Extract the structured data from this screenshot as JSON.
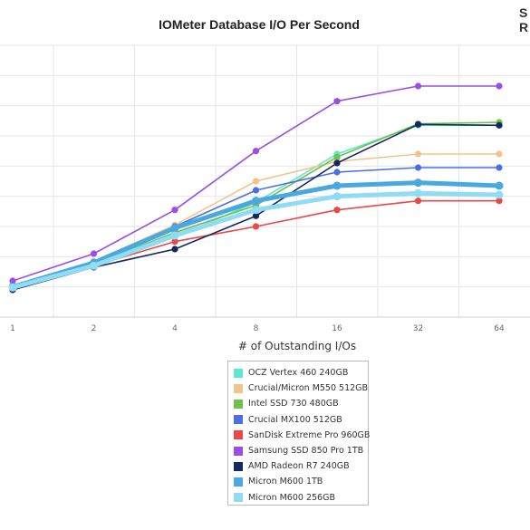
{
  "chart_data": {
    "type": "line",
    "title": "IOMeter Database I/O Per Second",
    "xlabel": "# of Outstanding I/Os",
    "ylabel": "",
    "x": [
      "1",
      "2",
      "4",
      "8",
      "16",
      "32",
      "64"
    ],
    "ylim": [
      0,
      9
    ],
    "grid": true,
    "legend_position": "bottom",
    "series": [
      {
        "name": "OCZ Vertex 460 240GB",
        "color": "#5fe6d3",
        "values": [
          1.0,
          1.75,
          2.65,
          3.8,
          5.4,
          6.35,
          6.35
        ]
      },
      {
        "name": "Crucial/Micron M550 512GB",
        "color": "#f0c58a",
        "values": [
          1.0,
          1.85,
          3.05,
          4.5,
          5.15,
          5.4,
          5.4
        ]
      },
      {
        "name": "Intel SSD 730 480GB",
        "color": "#6cc24a",
        "values": [
          0.95,
          1.75,
          2.8,
          3.7,
          5.3,
          6.4,
          6.45
        ]
      },
      {
        "name": "Crucial MX100 512GB",
        "color": "#4b6fe0",
        "values": [
          1.05,
          1.8,
          3.0,
          4.2,
          4.8,
          4.95,
          4.95
        ]
      },
      {
        "name": "SanDisk Extreme Pro 960GB",
        "color": "#e84848",
        "values": [
          0.95,
          1.7,
          2.5,
          3.0,
          3.55,
          3.85,
          3.85
        ]
      },
      {
        "name": "Samsung SSD 850 Pro 1TB",
        "color": "#9b4de8",
        "values": [
          1.2,
          2.1,
          3.55,
          5.5,
          7.15,
          7.65,
          7.65
        ]
      },
      {
        "name": "AMD Radeon R7 240GB",
        "color": "#142a5e",
        "values": [
          0.9,
          1.65,
          2.25,
          3.35,
          5.1,
          6.38,
          6.35
        ]
      },
      {
        "name": "Micron M600 1TB",
        "color": "#4aa8e0",
        "values": [
          1.0,
          1.8,
          2.95,
          3.85,
          4.35,
          4.45,
          4.35
        ]
      },
      {
        "name": "Micron M600 256GB",
        "color": "#90dcf4",
        "values": [
          0.98,
          1.7,
          2.7,
          3.55,
          4.0,
          4.1,
          4.05
        ]
      }
    ]
  },
  "logo": {
    "top": "S",
    "bottom": "R"
  }
}
